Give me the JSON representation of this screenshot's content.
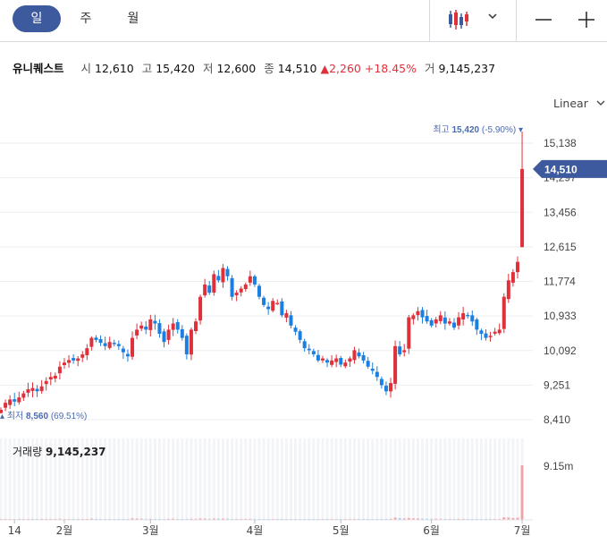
{
  "toolbar": {
    "periods": [
      {
        "label": "일",
        "active": true
      },
      {
        "label": "주",
        "active": false
      },
      {
        "label": "월",
        "active": false
      }
    ],
    "chart_type_icon": "candlestick-icon",
    "dropdown_icon": "chevron-down-icon",
    "zoom_out_icon": "minus-icon",
    "zoom_in_icon": "plus-icon"
  },
  "stock": {
    "name": "유니퀘스트",
    "open_label": "시",
    "open": "12,610",
    "high_label": "고",
    "high": "15,420",
    "low_label": "저",
    "low": "12,600",
    "close_label": "종",
    "close": "14,510",
    "change": "2,260",
    "change_pct": "+18.45%",
    "volume_label": "거",
    "volume": "9,145,237"
  },
  "scale_label": "Linear",
  "colors": {
    "up": "#e0303a",
    "down": "#1a7fe0",
    "accent": "#3d5a9e"
  },
  "chart_data": {
    "type": "candlestick",
    "y_ticks": [
      "15,138",
      "14,297",
      "13,456",
      "12,615",
      "11,774",
      "10,933",
      "10,092",
      "9,251",
      "8,410"
    ],
    "ylim": [
      8410,
      15138
    ],
    "x_ticks": [
      "14",
      "2월",
      "3월",
      "4월",
      "5월",
      "6월",
      "7월"
    ],
    "max_label": "최고",
    "max_value": "15,420",
    "max_pct": "(-5.90%)",
    "min_label": "최저",
    "min_value": "8,560",
    "min_pct": "(69.51%)",
    "last_price": "14,510",
    "volume_title": "거래량",
    "volume_value": "9,145,237",
    "volume_tick": "9.15m",
    "closes": [
      8650,
      8820,
      8900,
      8850,
      8950,
      9050,
      9150,
      9180,
      9100,
      9220,
      9350,
      9450,
      9480,
      9700,
      9800,
      9860,
      9850,
      9900,
      10000,
      10150,
      10400,
      10350,
      10280,
      10200,
      10300,
      10250,
      10200,
      10050,
      9950,
      10400,
      10600,
      10700,
      10600,
      10850,
      10750,
      10500,
      10300,
      10600,
      10750,
      10600,
      10400,
      10000,
      10600,
      10800,
      11400,
      11700,
      11500,
      11950,
      11800,
      12100,
      11900,
      11400,
      11500,
      11600,
      11700,
      11900,
      11700,
      11400,
      11200,
      11100,
      11300,
      11250,
      10950,
      11000,
      10700,
      10550,
      10350,
      10150,
      10100,
      10000,
      9850,
      9900,
      9800,
      9850,
      9900,
      9750,
      9800,
      9900,
      10100,
      9950,
      9850,
      9700,
      9600,
      9450,
      9250,
      9100,
      9300,
      10200,
      10000,
      10100,
      10900,
      10950,
      11050,
      10900,
      10800,
      10700,
      10850,
      10950,
      10750,
      10800,
      10650,
      10900,
      11000,
      10950,
      10800,
      10600,
      10500,
      10400,
      10450,
      10550,
      10600,
      11400,
      11800,
      12000,
      12250,
      14510
    ],
    "volume": [
      150,
      120,
      100,
      110,
      130,
      90,
      100,
      140,
      120,
      160,
      130,
      110,
      100,
      190,
      150,
      120,
      110,
      100,
      120,
      140,
      210,
      160,
      120,
      100,
      130,
      110,
      100,
      120,
      140,
      260,
      230,
      200,
      160,
      180,
      150,
      130,
      120,
      170,
      200,
      150,
      140,
      160,
      190,
      170,
      240,
      210,
      180,
      230,
      200,
      220,
      180,
      150,
      140,
      150,
      160,
      180,
      150,
      140,
      130,
      120,
      140,
      130,
      160,
      150,
      140,
      130,
      150,
      120,
      100,
      110,
      100,
      110,
      100,
      100,
      120,
      100,
      110,
      120,
      140,
      120,
      110,
      130,
      150,
      140,
      130,
      160,
      170,
      380,
      300,
      250,
      320,
      260,
      240,
      200,
      180,
      170,
      190,
      180,
      170,
      160,
      150,
      170,
      160,
      150,
      140,
      130,
      150,
      160,
      140,
      150,
      150,
      420,
      380,
      300,
      360,
      9145
    ]
  }
}
